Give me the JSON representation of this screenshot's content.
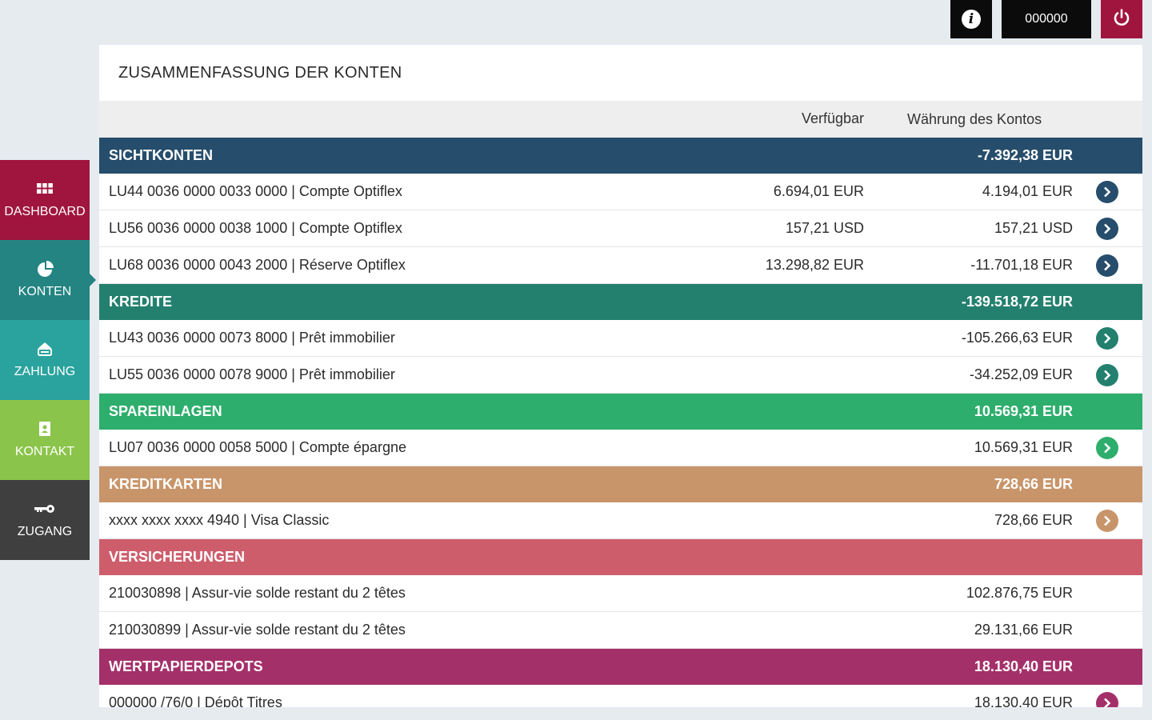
{
  "topbar": {
    "user_id": "000000",
    "info_icon": "info-icon",
    "power_icon": "power-icon"
  },
  "sidebar": {
    "items": [
      {
        "label": "DASHBOARD",
        "icon": "grid-icon",
        "color": "#a0153e"
      },
      {
        "label": "KONTEN",
        "icon": "pie-chart-icon",
        "color": "#238482",
        "active": true
      },
      {
        "label": "ZAHLUNG",
        "icon": "payment-icon",
        "color": "#2aa39e"
      },
      {
        "label": "KONTAKT",
        "icon": "contact-icon",
        "color": "#8bc44a"
      },
      {
        "label": "ZUGANG",
        "icon": "key-icon",
        "color": "#3f3f3f"
      }
    ]
  },
  "panel": {
    "title": "ZUSAMMENFASSUNG DER KONTEN",
    "col_available": "Verfügbar",
    "col_currency": "Währung des Kontos"
  },
  "groups": [
    {
      "name": "SICHTKONTEN",
      "total": "-7.392,38 EUR",
      "color": "#264d6b",
      "rows": [
        {
          "label": "LU44 0036 0000 0033 0000 | Compte Optiflex",
          "available": "6.694,01 EUR",
          "amount": "4.194,01 EUR"
        },
        {
          "label": "LU56 0036 0000 0038 1000 | Compte Optiflex",
          "available": "157,21 USD",
          "amount": "157,21 USD"
        },
        {
          "label": "LU68 0036 0000 0043 2000 | Réserve Optiflex",
          "available": "13.298,82 EUR",
          "amount": "-11.701,18 EUR"
        }
      ]
    },
    {
      "name": "KREDITE",
      "total": "-139.518,72 EUR",
      "color": "#23806e",
      "rows": [
        {
          "label": "LU43 0036 0000 0073 8000 | Prêt immobilier",
          "amount": "-105.266,63 EUR"
        },
        {
          "label": "LU55 0036 0000 0078 9000 | Prêt immobilier",
          "amount": "-34.252,09 EUR"
        }
      ]
    },
    {
      "name": "SPAREINLAGEN",
      "total": "10.569,31 EUR",
      "color": "#2eae6c",
      "rows": [
        {
          "label": "LU07 0036 0000 0058 5000 | Compte épargne",
          "amount": "10.569,31 EUR"
        }
      ]
    },
    {
      "name": "KREDITKARTEN",
      "total": "728,66 EUR",
      "color": "#c8956a",
      "rows": [
        {
          "label": "xxxx xxxx xxxx 4940 | Visa Classic",
          "amount": "728,66 EUR"
        }
      ]
    },
    {
      "name": "VERSICHERUNGEN",
      "total": "",
      "color": "#ce5d6c",
      "rows": [
        {
          "label": "210030898 | Assur-vie solde restant du 2 têtes",
          "amount": "102.876,75 EUR"
        },
        {
          "label": "210030899 | Assur-vie solde restant du 2 têtes",
          "amount": "29.131,66 EUR"
        }
      ]
    },
    {
      "name": "WERTPAPIERDEPOTS",
      "total": "18.130,40 EUR",
      "color": "#a4306a",
      "rows": [
        {
          "label": "000000 /76/0 | Dépôt Titres",
          "amount": "18.130,40 EUR"
        }
      ]
    }
  ]
}
